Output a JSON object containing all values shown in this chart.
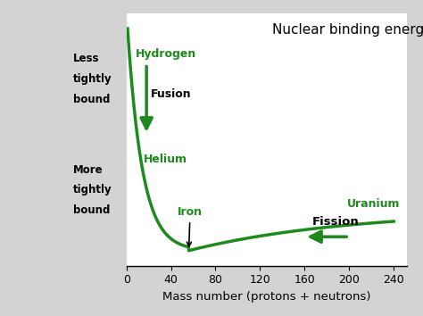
{
  "title": "Nuclear binding energy",
  "xlabel": "Mass number (protons + neutrons)",
  "xticks": [
    0,
    40,
    80,
    120,
    160,
    200,
    240
  ],
  "xtick_labels": [
    "0",
    "40",
    "80",
    "120",
    "160",
    "200",
    "240"
  ],
  "xlim": [
    0,
    252
  ],
  "ylim": [
    0.0,
    1.0
  ],
  "background_color": "#d3d3d3",
  "plot_bg_color": "#ffffff",
  "curve_color": "#1e8a1e",
  "curve_linewidth": 2.5,
  "green_color": "#1e8a1e",
  "black_color": "#000000",
  "label_hydrogen": "Hydrogen",
  "label_helium": "Helium",
  "label_iron": "Iron",
  "label_uranium": "Uranium",
  "label_fusion": "Fusion",
  "label_fission": "Fission"
}
